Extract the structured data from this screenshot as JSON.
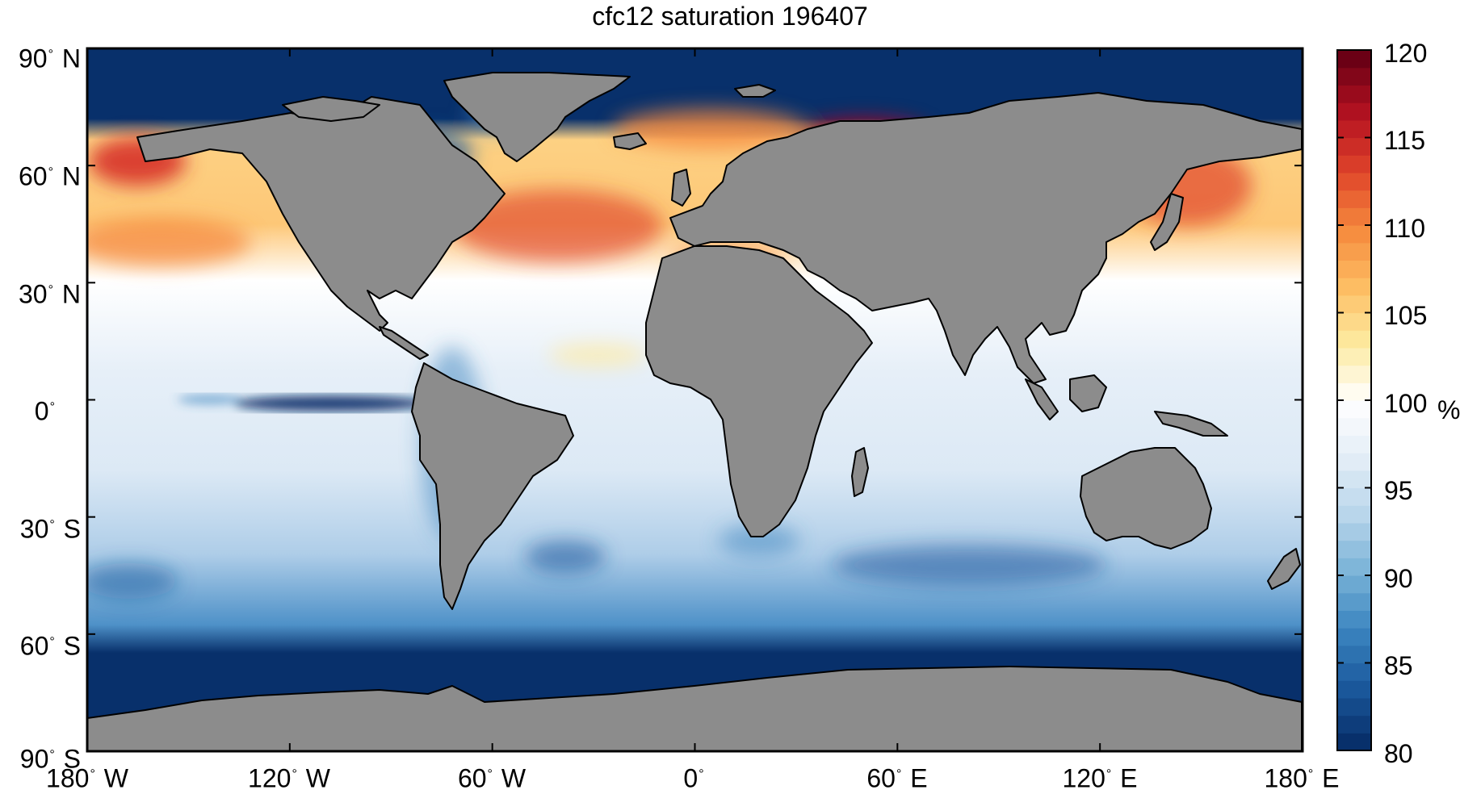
{
  "title": "cfc12 saturation 196407",
  "y_axis_ticks": [
    {
      "deg": "90",
      "hemi": "N"
    },
    {
      "deg": "60",
      "hemi": "N"
    },
    {
      "deg": "30",
      "hemi": "N"
    },
    {
      "deg": "0",
      "hemi": ""
    },
    {
      "deg": "30",
      "hemi": "S"
    },
    {
      "deg": "60",
      "hemi": "S"
    },
    {
      "deg": "90",
      "hemi": "S"
    }
  ],
  "x_axis_ticks": [
    {
      "deg": "180",
      "hemi": "W"
    },
    {
      "deg": "120",
      "hemi": "W"
    },
    {
      "deg": "60",
      "hemi": "W"
    },
    {
      "deg": "0",
      "hemi": ""
    },
    {
      "deg": "60",
      "hemi": "E"
    },
    {
      "deg": "120",
      "hemi": "E"
    },
    {
      "deg": "180",
      "hemi": "E"
    }
  ],
  "colorbar": {
    "unit": "%",
    "min": 80,
    "max": 120,
    "tick_labels": [
      "120",
      "115",
      "110",
      "105",
      "100",
      "95",
      "90",
      "85",
      "80"
    ],
    "colors_low_to_high": [
      "#08306b",
      "#1c5a9e",
      "#3c86c0",
      "#7ab3d8",
      "#b9d6eb",
      "#e4eef7",
      "#ffffff",
      "#fdeaa0",
      "#fdbd63",
      "#f58a3d",
      "#e0452a",
      "#b51221",
      "#6b0015"
    ]
  },
  "colors": {
    "land": "#8c8c8c",
    "coast": "#000000",
    "ocean_base": "#dce9f5",
    "deep_blue": "#08306b"
  }
}
